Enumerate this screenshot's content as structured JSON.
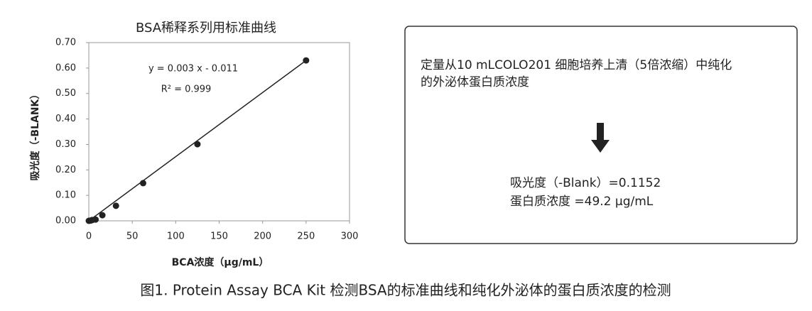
{
  "chart_data": {
    "type": "scatter",
    "title": "BSA稀释系列用标准曲线",
    "x_label": "BCA浓度（μg/mL）",
    "y_label": "吸光度（-BLANK）",
    "x": [
      0,
      2,
      3.9,
      7.8,
      15.6,
      31.25,
      62.5,
      125,
      250
    ],
    "values": [
      0,
      0.001,
      0.003,
      0.005,
      0.022,
      0.059,
      0.148,
      0.301,
      0.63
    ],
    "color": "#222222",
    "trendline": true,
    "annotations": [
      "y = 0.003 x - 0.011",
      "R² = 0.999"
    ],
    "xlim": [
      0,
      300
    ],
    "xticks": [
      0,
      50,
      100,
      150,
      200,
      250,
      300
    ],
    "ylim": [
      0,
      0.7
    ],
    "yticks": [
      {
        "value": 0,
        "label": "0.00"
      },
      {
        "value": 0.1,
        "label": "0.10"
      },
      {
        "value": 0.2,
        "label": "0.20"
      },
      {
        "value": 0.3,
        "label": "0.30"
      },
      {
        "value": 0.4,
        "label": "0.40"
      },
      {
        "value": 0.5,
        "label": "0.50"
      },
      {
        "value": 0.6,
        "label": "0.60"
      },
      {
        "value": 0.7,
        "label": "0.70"
      }
    ]
  },
  "panel": {
    "description": [
      "定量从10 mLCOLO201 细胞培养上清（5倍浓缩）中纯化",
      "的外泌体蛋白质浓度"
    ],
    "results": [
      "吸光度（-Blank）=0.1152",
      "蛋白质浓度 =49.2 μg/mL"
    ]
  },
  "caption": "图1. Protein Assay BCA Kit 检测BSA的标准曲线和纯化外泌体的蛋白质浓度的检测"
}
